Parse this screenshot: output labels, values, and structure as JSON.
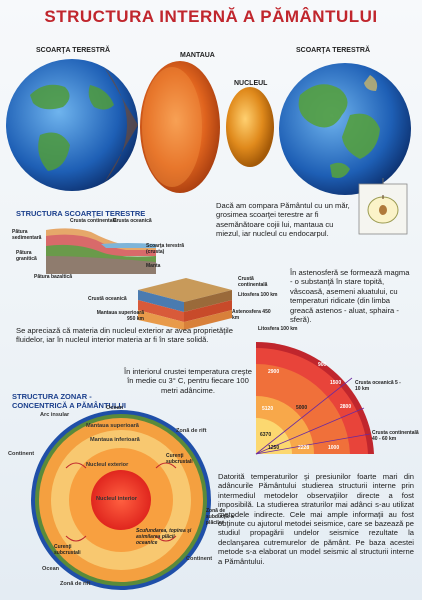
{
  "title": "STRUCTURA INTERNĂ A PĂMÂNTULUI",
  "top_labels": {
    "crust_left": "SCOARŢA TERESTRĂ",
    "mantle": "MANTAUA",
    "core": "NUCLEUL",
    "crust_right": "SCOARŢA TERESTRĂ"
  },
  "apple_text": "Dacă am compara Pământul cu un măr, grosimea scoarţei terestre ar fi asemănătoare cojii lui, mantaua cu miezul, iar nucleul cu endocarpul.",
  "crust_section": {
    "heading": "STRUCTURA SCOARŢEI TERESTRE",
    "continental_crust": "Crusta continentală",
    "oceanic_crust": "Crusta oceanică",
    "sedimentary": "Pătura sedimentară",
    "granitic": "Pătura granitică",
    "basaltic": "Pătura bazaltică",
    "earth_crust": "Scoarţa terestră (crusta)",
    "mantle": "Manta"
  },
  "lithosphere_block": {
    "continental": "Crustă continentală",
    "lithosphere": "Litosfera 100 km",
    "asthenosphere": "Astenosfera 450 km",
    "oceanic": "Crustă oceanică",
    "upper_mantle": "Mantaua superioară 950 km"
  },
  "asthenosphere_text": "În astenosferă se formează magma - o substanţă în stare topită, vâscoasă, asemeni aluatului, cu temperaturi ridicate (din limba greacă astenos - aluat, sphaira - sferă).",
  "state_text": "Se apreciază că materia din nucleul exterior ar avea proprietăţile fluidelor, iar în nucleul interior materia ar fi în stare solidă.",
  "temp_text": "În interiorul crustei temperatura creşte în medie cu 3° C, pentru fiecare 100 metri adâncime.",
  "seismic_diagram": {
    "lithosphere": "Litosfera 100 km",
    "oceanic": "Crusta oceanică 5 - 10 km",
    "continental": "Crusta continentală 40 - 60 km",
    "numbers": [
      "2900",
      "900",
      "5120",
      "5000",
      "1500",
      "2800",
      "6370",
      "1250",
      "2228",
      "1000"
    ]
  },
  "zonal_section": {
    "heading": "STRUCTURA ZONAR - CONCENTRICĂ A PĂMÂNTULUI",
    "ocean_top": "Ocean",
    "island_arc": "Arc insular",
    "upper_mantle": "Mantaua superioară",
    "lower_mantle": "Mantaua inferioară",
    "rift_zone": "Zonă de rift",
    "continent_left": "Continent",
    "convection_top": "Curenţi subcrustali",
    "outer_core": "Nucleul exterior",
    "inner_core": "Nucleul interior",
    "subduction": "Zonă de subducţie a plăcilor",
    "melting": "Scufundarea, topirea şi asimilarea plăcii oceanice",
    "convection_bottom": "Curenţi subcrustali",
    "continent_right": "Continent",
    "ocean_bottom": "Ocean",
    "rift_bottom": "Zonă de rift"
  },
  "seismic_text": "Datorită temperaturilor şi presiunilor foarte mari din adâncurile Pământului studierea structurii interne prin intermediul metodelor observaţiilor directe a fost imposibilă. La studierea straturilor mai adânci s-au utilizat metodele indirecte. Cele mai ample informaţii au fost obţinute cu ajutorul metodei seismice, care se bazează pe studiul propagării undelor seismice rezultate la declanşarea cutremurelor de pământ. Pe baza acestei metode s-a elaborat un model seismic al structurii interne a Pământului."
}
